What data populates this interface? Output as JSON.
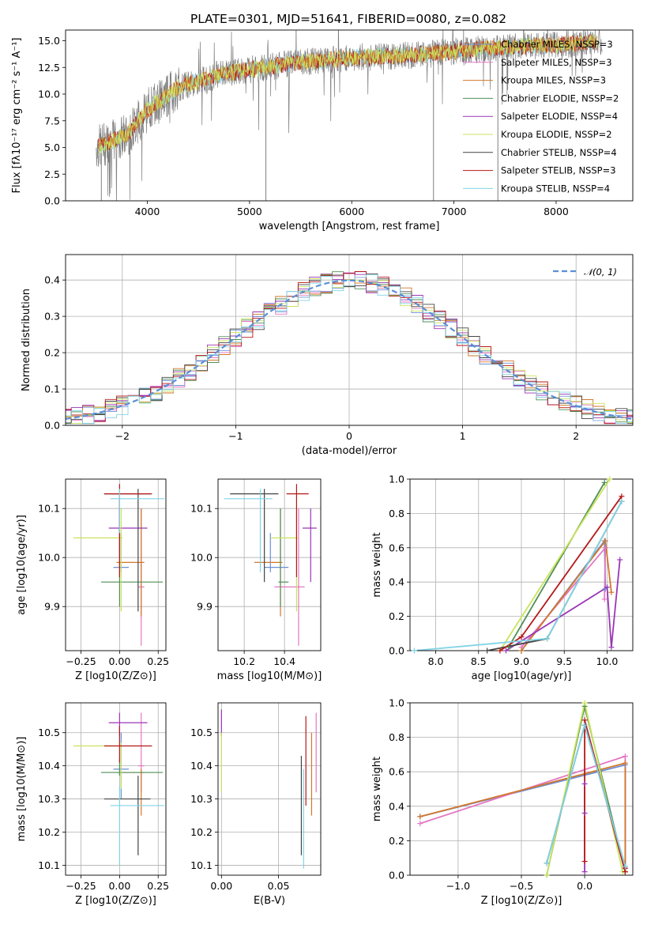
{
  "colors": {
    "chab_miles": "#6a8fd6",
    "salp_miles": "#e377c2",
    "krou_miles": "#d2772b",
    "chab_elodie": "#4f8f55",
    "salp_elodie": "#9a36b5",
    "krou_elodie": "#c9e35c",
    "chab_stelib": "#444444",
    "salp_stelib": "#b51818",
    "krou_stelib": "#80d4e6",
    "data": "#7f7f7f",
    "gauss": "#5b8fd6"
  },
  "chart_data": [
    {
      "id": "spectrum",
      "type": "line",
      "title": "PLATE=0301, MJD=51641, FIBERID=0080, z=0.082",
      "xlabel": "wavelength [Angstrom, rest frame]",
      "ylabel": "Flux [fλ10⁻¹⁷ erg cm⁻² s⁻¹ A⁻¹]",
      "xlim": [
        3200,
        8750
      ],
      "ylim": [
        0,
        16
      ],
      "xticks": [
        4000,
        5000,
        6000,
        7000,
        8000
      ],
      "yticks": [
        0.0,
        2.5,
        5.0,
        7.5,
        10.0,
        12.5,
        15.0
      ],
      "legend": [
        "Chabrier MILES, NSSP=3",
        "Salpeter MILES, NSSP=3",
        "Kroupa MILES, NSSP=3",
        "Chabrier ELODIE, NSSP=2",
        "Salpeter ELODIE, NSSP=4",
        "Kroupa ELODIE, NSSP=2",
        "Chabrier STELIB, NSSP=4",
        "Salpeter STELIB, NSSP=3",
        "Kroupa STELIB, NSSP=4"
      ],
      "legend_loc": "right",
      "continuum": {
        "x": [
          3500,
          3800,
          4000,
          4300,
          4700,
          5000,
          5500,
          6000,
          6500,
          7000,
          7500,
          8000,
          8400
        ],
        "y": [
          5.0,
          6.2,
          8.5,
          10.6,
          11.8,
          12.3,
          13.0,
          13.4,
          13.6,
          14.0,
          14.4,
          14.6,
          14.9
        ]
      },
      "features": [
        {
          "x": 3550,
          "lo": 0,
          "hi": 6
        },
        {
          "x": 5160,
          "lo": 0,
          "hi": 13
        },
        {
          "x": 6800,
          "lo": 0,
          "hi": 14
        },
        {
          "x": 7430,
          "lo": 0,
          "hi": 14
        }
      ]
    },
    {
      "id": "residuals",
      "type": "histogram",
      "xlabel": "(data-model)/error",
      "ylabel": "Normed distribution",
      "xlim": [
        -2.5,
        2.5
      ],
      "ylim": [
        0,
        0.47
      ],
      "xticks": [
        -2,
        -1,
        0,
        1,
        2
      ],
      "yticks": [
        0.0,
        0.1,
        0.2,
        0.3,
        0.4
      ],
      "legend": [
        "𝒩(0, 1)"
      ],
      "legend_loc": "upper right"
    },
    {
      "id": "age_z",
      "type": "errorbar",
      "xlabel": "Z [log10(Z/Z⊙)]",
      "ylabel": "age  [log10(age/yr)]",
      "xlim": [
        -0.35,
        0.3
      ],
      "ylim": [
        9.81,
        10.16
      ],
      "xticks": [
        -0.25,
        0.0,
        0.25
      ],
      "xticklabels": [
        "−0.25",
        "0.00",
        "0.25"
      ],
      "yticks": [
        9.9,
        10.0,
        10.1
      ],
      "yticklabels": [
        "9.9",
        "10.0",
        "10.1"
      ],
      "points": [
        {
          "c": "chab_miles",
          "x": 0.01,
          "y": 9.98,
          "xe": [
            -0.04,
            0.06
          ],
          "ye": [
            9.97,
            10.05
          ]
        },
        {
          "c": "salp_miles",
          "x": 0.14,
          "y": 9.94,
          "xe": [
            0.12,
            0.16
          ],
          "ye": [
            9.82,
            10.1
          ]
        },
        {
          "c": "krou_miles",
          "x": 0.14,
          "y": 9.99,
          "xe": [
            -0.02,
            0.16
          ],
          "ye": [
            9.88,
            10.1
          ]
        },
        {
          "c": "chab_elodie",
          "x": 0.0,
          "y": 9.95,
          "xe": [
            -0.12,
            0.28
          ],
          "ye": [
            9.9,
            10.1
          ]
        },
        {
          "c": "salp_elodie",
          "x": 0.0,
          "y": 10.06,
          "xe": [
            -0.07,
            0.18
          ],
          "ye": [
            10.0,
            10.12
          ]
        },
        {
          "c": "krou_elodie",
          "x": 0.01,
          "y": 10.04,
          "xe": [
            -0.3,
            0.02
          ],
          "ye": [
            9.89,
            10.1
          ]
        },
        {
          "c": "chab_stelib",
          "x": 0.12,
          "y": 10.13,
          "xe": [
            -0.1,
            0.2
          ],
          "ye": [
            9.89,
            10.14
          ]
        },
        {
          "c": "salp_stelib",
          "x": 0.0,
          "y": 10.13,
          "xe": [
            -0.1,
            0.21
          ],
          "ye": [
            9.96,
            10.15
          ]
        },
        {
          "c": "krou_stelib",
          "x": 0.0,
          "y": 10.12,
          "xe": [
            -0.06,
            0.29
          ],
          "ye": [
            10.05,
            10.14
          ]
        }
      ]
    },
    {
      "id": "age_mass",
      "type": "errorbar",
      "xlabel": "mass [log10(M/M⊙)]",
      "ylabel": "",
      "xlim": [
        10.07,
        10.58
      ],
      "ylim": [
        9.81,
        10.16
      ],
      "xticks": [
        10.2,
        10.4
      ],
      "xticklabels": [
        "10.2",
        "10.4"
      ],
      "yticks": [
        9.9,
        10.0,
        10.1
      ],
      "yticklabels": [
        "9.9",
        "10.0",
        "10.1"
      ],
      "points": [
        {
          "c": "chab_miles",
          "x": 10.33,
          "y": 9.98,
          "xe": [
            10.3,
            10.42
          ],
          "ye": [
            9.97,
            10.05
          ]
        },
        {
          "c": "salp_miles",
          "x": 10.47,
          "y": 9.94,
          "xe": [
            10.35,
            10.5
          ],
          "ye": [
            9.82,
            10.1
          ]
        },
        {
          "c": "krou_miles",
          "x": 10.38,
          "y": 9.99,
          "xe": [
            10.25,
            10.39
          ],
          "ye": [
            9.88,
            10.1
          ]
        },
        {
          "c": "chab_elodie",
          "x": 10.38,
          "y": 9.95,
          "xe": [
            10.37,
            10.42
          ],
          "ye": [
            9.9,
            10.1
          ]
        },
        {
          "c": "salp_elodie",
          "x": 10.53,
          "y": 10.06,
          "xe": [
            10.49,
            10.56
          ],
          "ye": [
            9.95,
            10.1
          ]
        },
        {
          "c": "krou_elodie",
          "x": 10.46,
          "y": 10.04,
          "xe": [
            10.33,
            10.47
          ],
          "ye": [
            9.89,
            10.1
          ]
        },
        {
          "c": "chab_stelib",
          "x": 10.3,
          "y": 10.13,
          "xe": [
            10.13,
            10.37
          ],
          "ye": [
            9.95,
            10.14
          ]
        },
        {
          "c": "salp_stelib",
          "x": 10.46,
          "y": 10.13,
          "xe": [
            10.41,
            10.52
          ],
          "ye": [
            9.96,
            10.15
          ]
        },
        {
          "c": "krou_stelib",
          "x": 10.28,
          "y": 10.12,
          "xe": [
            10.1,
            10.34
          ],
          "ye": [
            9.97,
            10.14
          ]
        }
      ]
    },
    {
      "id": "mw_age",
      "type": "line",
      "xlabel": "age  [log10(age/yr)]",
      "ylabel": "mass weight",
      "xlim": [
        7.7,
        10.3
      ],
      "ylim": [
        0,
        1
      ],
      "xticks": [
        8.0,
        8.5,
        9.0,
        9.5,
        10.0
      ],
      "xticklabels": [
        "8.0",
        "8.5",
        "9.0",
        "9.5",
        "10.0"
      ],
      "yticks": [
        0.0,
        0.2,
        0.4,
        0.6,
        0.8,
        1.0
      ],
      "yticklabels": [
        "0.0",
        "0.2",
        "0.4",
        "0.6",
        "0.8",
        "1.0"
      ],
      "series": [
        {
          "c": "chab_miles",
          "x": [
            9.0,
            9.97,
            9.98
          ],
          "y": [
            0.0,
            0.64,
            0.36
          ]
        },
        {
          "c": "salp_miles",
          "x": [
            9.0,
            9.98,
            9.97
          ],
          "y": [
            0.02,
            0.6,
            0.3
          ]
        },
        {
          "c": "krou_miles",
          "x": [
            9.0,
            9.98,
            10.05
          ],
          "y": [
            0.0,
            0.64,
            0.34
          ]
        },
        {
          "c": "chab_elodie",
          "x": [
            8.85,
            9.97
          ],
          "y": [
            0.02,
            0.98
          ]
        },
        {
          "c": "salp_elodie",
          "x": [
            8.82,
            10.0,
            10.05,
            10.15
          ],
          "y": [
            0.0,
            0.37,
            0.02,
            0.53
          ]
        },
        {
          "c": "krou_elodie",
          "x": [
            8.75,
            10.03
          ],
          "y": [
            0.0,
            1.0
          ]
        },
        {
          "c": "chab_stelib",
          "x": [
            8.6,
            9.3,
            10.17
          ],
          "y": [
            0.0,
            0.07,
            0.87
          ]
        },
        {
          "c": "salp_stelib",
          "x": [
            8.75,
            9.0,
            10.17
          ],
          "y": [
            0.0,
            0.08,
            0.9
          ]
        },
        {
          "c": "krou_stelib",
          "x": [
            7.75,
            9.3,
            10.17
          ],
          "y": [
            0.0,
            0.07,
            0.87
          ]
        }
      ]
    },
    {
      "id": "mass_z",
      "type": "errorbar",
      "xlabel": "Z [log10(Z/Z⊙)]",
      "ylabel": "mass [log10(M/M⊙)]",
      "xlim": [
        -0.35,
        0.3
      ],
      "ylim": [
        10.07,
        10.59
      ],
      "xticks": [
        -0.25,
        0.0,
        0.25
      ],
      "xticklabels": [
        "−0.25",
        "0.00",
        "0.25"
      ],
      "yticks": [
        10.1,
        10.2,
        10.3,
        10.4,
        10.5
      ],
      "yticklabels": [
        "10.1",
        "10.2",
        "10.3",
        "10.4",
        "10.5"
      ],
      "points": [
        {
          "c": "chab_miles",
          "x": 0.01,
          "y": 10.39,
          "xe": [
            -0.04,
            0.06
          ],
          "ye": [
            10.3,
            10.5
          ]
        },
        {
          "c": "salp_miles",
          "x": 0.14,
          "y": 10.4,
          "xe": [
            0.12,
            0.16
          ],
          "ye": [
            10.32,
            10.56
          ]
        },
        {
          "c": "krou_miles",
          "x": 0.14,
          "y": 10.38,
          "xe": [
            -0.02,
            0.16
          ],
          "ye": [
            10.25,
            10.39
          ]
        },
        {
          "c": "chab_elodie",
          "x": 0.0,
          "y": 10.38,
          "xe": [
            -0.12,
            0.28
          ],
          "ye": [
            10.37,
            10.42
          ]
        },
        {
          "c": "salp_elodie",
          "x": 0.0,
          "y": 10.53,
          "xe": [
            -0.07,
            0.18
          ],
          "ye": [
            10.49,
            10.56
          ]
        },
        {
          "c": "krou_elodie",
          "x": 0.01,
          "y": 10.46,
          "xe": [
            -0.3,
            0.02
          ],
          "ye": [
            10.33,
            10.47
          ]
        },
        {
          "c": "chab_stelib",
          "x": 0.12,
          "y": 10.3,
          "xe": [
            -0.1,
            0.2
          ],
          "ye": [
            10.13,
            10.37
          ]
        },
        {
          "c": "salp_stelib",
          "x": 0.0,
          "y": 10.46,
          "xe": [
            -0.1,
            0.21
          ],
          "ye": [
            10.41,
            10.52
          ]
        },
        {
          "c": "krou_stelib",
          "x": 0.0,
          "y": 10.28,
          "xe": [
            -0.06,
            0.29
          ],
          "ye": [
            10.1,
            10.34
          ]
        }
      ]
    },
    {
      "id": "mass_ebv",
      "type": "errorbar",
      "xlabel": "E(B-V)",
      "ylabel": "",
      "xlim": [
        -0.003,
        0.087
      ],
      "ylim": [
        10.07,
        10.59
      ],
      "xticks": [
        0.0,
        0.05
      ],
      "xticklabels": [
        "0.00",
        "0.05"
      ],
      "yticks": [
        10.1,
        10.2,
        10.3,
        10.4,
        10.5
      ],
      "yticklabels": [
        "10.1",
        "10.2",
        "10.3",
        "10.4",
        "10.5"
      ],
      "points": [
        {
          "c": "salp_elodie",
          "x": 0.0,
          "y": 10.53,
          "xe": [
            0.0,
            0.0
          ],
          "ye": [
            10.49,
            10.57
          ]
        },
        {
          "c": "krou_elodie",
          "x": 0.0,
          "y": 10.42,
          "xe": [
            0.0,
            0.0
          ],
          "ye": [
            10.32,
            10.5
          ]
        },
        {
          "c": "chab_stelib",
          "x": 0.07,
          "y": 10.28,
          "xe": [
            0.07,
            0.07
          ],
          "ye": [
            10.13,
            10.43
          ]
        },
        {
          "c": "krou_stelib",
          "x": 0.072,
          "y": 10.22,
          "xe": [
            0.072,
            0.072
          ],
          "ye": [
            10.09,
            10.39
          ]
        },
        {
          "c": "salp_stelib",
          "x": 0.074,
          "y": 10.42,
          "xe": [
            0.074,
            0.074
          ],
          "ye": [
            10.28,
            10.55
          ]
        },
        {
          "c": "krou_miles",
          "x": 0.079,
          "y": 10.37,
          "xe": [
            0.079,
            0.079
          ],
          "ye": [
            10.25,
            10.5
          ]
        },
        {
          "c": "salp_miles",
          "x": 0.083,
          "y": 10.44,
          "xe": [
            0.083,
            0.083
          ],
          "ye": [
            10.32,
            10.56
          ]
        }
      ]
    },
    {
      "id": "mw_z",
      "type": "line",
      "xlabel": "Z [log10(Z/Z⊙)]",
      "ylabel": "mass weight",
      "xlim": [
        -1.38,
        0.38
      ],
      "ylim": [
        0,
        1
      ],
      "xticks": [
        -1.0,
        -0.5,
        0.0
      ],
      "xticklabels": [
        "−1.0",
        "−0.5",
        "0.0"
      ],
      "yticks": [
        0.0,
        0.2,
        0.4,
        0.6,
        0.8,
        1.0
      ],
      "yticklabels": [
        "0.0",
        "0.2",
        "0.4",
        "0.6",
        "0.8",
        "1.0"
      ],
      "series": [
        {
          "c": "chab_miles",
          "x": [
            -1.3,
            0.32,
            0.32
          ],
          "y": [
            0.34,
            0.64,
            0.02
          ]
        },
        {
          "c": "salp_miles",
          "x": [
            -1.3,
            0.32,
            0.32
          ],
          "y": [
            0.3,
            0.69,
            0.02
          ]
        },
        {
          "c": "krou_miles",
          "x": [
            -1.3,
            0.32,
            0.32
          ],
          "y": [
            0.34,
            0.65,
            0.02
          ]
        },
        {
          "c": "chab_elodie",
          "x": [
            -0.3,
            0.0,
            0.32
          ],
          "y": [
            0.0,
            0.98,
            0.02
          ]
        },
        {
          "c": "salp_elodie",
          "x": [
            0.0,
            0.0,
            0.0
          ],
          "y": [
            0.53,
            0.36,
            0.02
          ]
        },
        {
          "c": "krou_elodie",
          "x": [
            -0.3,
            0.0,
            0.3
          ],
          "y": [
            0.0,
            1.0,
            0.02
          ]
        },
        {
          "c": "chab_stelib",
          "x": [
            -0.3,
            0.0,
            0.32
          ],
          "y": [
            0.07,
            0.87,
            0.05
          ]
        },
        {
          "c": "salp_stelib",
          "x": [
            0.0,
            0.0,
            0.32,
            0.32
          ],
          "y": [
            0.08,
            0.9,
            0.02,
            0.04
          ]
        },
        {
          "c": "krou_stelib",
          "x": [
            -0.3,
            0.0,
            0.32
          ],
          "y": [
            0.07,
            0.87,
            0.05
          ]
        }
      ]
    }
  ]
}
